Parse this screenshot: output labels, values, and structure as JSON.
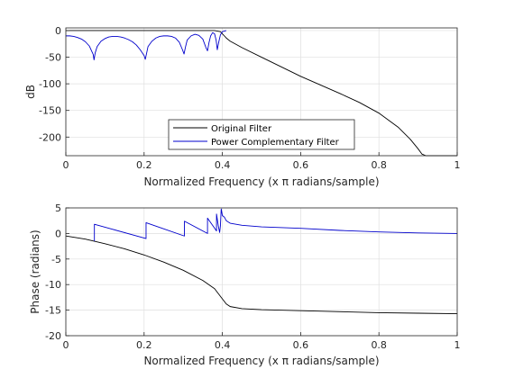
{
  "chart_data": [
    {
      "type": "line",
      "xlabel": "Normalized Frequency (x π radians/sample)",
      "ylabel": "dB",
      "xlim": [
        0,
        1
      ],
      "ylim": [
        -235,
        5
      ],
      "xticks": [
        0,
        0.2,
        0.4,
        0.6,
        0.8,
        1
      ],
      "xtick_labels": [
        "0",
        "0.2",
        "0.4",
        "0.6",
        "0.8",
        "1"
      ],
      "yticks": [
        0,
        -50,
        -100,
        -150,
        -200
      ],
      "ytick_labels": [
        "0",
        "-50",
        "-100",
        "-150",
        "-200"
      ],
      "grid": true,
      "legend": "bottom-center",
      "series": [
        {
          "name": "Original Filter",
          "color": "#000000",
          "x": [
            0,
            0.38,
            0.395,
            0.4,
            0.405,
            0.41,
            0.42,
            0.45,
            0.5,
            0.55,
            0.6,
            0.65,
            0.7,
            0.75,
            0.8,
            0.85,
            0.88,
            0.9,
            0.91,
            0.92,
            1.0
          ],
          "y": [
            0,
            0,
            -2,
            -6,
            -10,
            -14,
            -20,
            -32,
            -50,
            -68,
            -86,
            -102,
            -118,
            -135,
            -155,
            -182,
            -204,
            -222,
            -232,
            -235,
            -235
          ]
        },
        {
          "name": "Power Complementary Filter",
          "color": "#0000cc",
          "x": [
            0,
            0.01,
            0.02,
            0.03,
            0.04,
            0.05,
            0.06,
            0.07,
            0.072,
            0.075,
            0.08,
            0.09,
            0.1,
            0.11,
            0.12,
            0.13,
            0.14,
            0.15,
            0.16,
            0.17,
            0.18,
            0.19,
            0.2,
            0.203,
            0.206,
            0.21,
            0.22,
            0.23,
            0.24,
            0.25,
            0.26,
            0.27,
            0.28,
            0.29,
            0.298,
            0.302,
            0.306,
            0.31,
            0.32,
            0.33,
            0.34,
            0.35,
            0.358,
            0.362,
            0.366,
            0.37,
            0.375,
            0.38,
            0.384,
            0.387,
            0.39,
            0.395,
            0.4,
            0.405,
            0.41
          ],
          "y": [
            -10,
            -10,
            -11,
            -13,
            -16,
            -21,
            -29,
            -45,
            -55,
            -42,
            -30,
            -20,
            -15,
            -12,
            -11,
            -11,
            -12,
            -14,
            -17,
            -21,
            -27,
            -36,
            -47,
            -54,
            -44,
            -30,
            -20,
            -14,
            -11,
            -10,
            -10,
            -11,
            -14,
            -22,
            -36,
            -44,
            -30,
            -18,
            -10,
            -7,
            -9,
            -16,
            -32,
            -38,
            -22,
            -10,
            -4,
            -6,
            -18,
            -36,
            -24,
            -8,
            -2,
            -1,
            0
          ]
        }
      ]
    },
    {
      "type": "line",
      "xlabel": "Normalized Frequency (x π radians/sample)",
      "ylabel": "Phase (radians)",
      "xlim": [
        0,
        1
      ],
      "ylim": [
        -20,
        5
      ],
      "xticks": [
        0,
        0.2,
        0.4,
        0.6,
        0.8,
        1
      ],
      "xtick_labels": [
        "0",
        "0.2",
        "0.4",
        "0.6",
        "0.8",
        "1"
      ],
      "yticks": [
        5,
        0,
        -5,
        -10,
        -15,
        -20
      ],
      "ytick_labels": [
        "5",
        "0",
        "-5",
        "-10",
        "-15",
        "-20"
      ],
      "grid": true,
      "series": [
        {
          "name": "Original Filter",
          "color": "#000000",
          "x": [
            0,
            0.05,
            0.1,
            0.15,
            0.2,
            0.25,
            0.3,
            0.35,
            0.38,
            0.4,
            0.41,
            0.42,
            0.45,
            0.5,
            0.6,
            0.7,
            0.8,
            0.9,
            1.0
          ],
          "y": [
            -0.5,
            -1.1,
            -2.0,
            -3.0,
            -4.2,
            -5.6,
            -7.2,
            -9.2,
            -10.8,
            -12.8,
            -13.8,
            -14.3,
            -14.7,
            -14.9,
            -15.1,
            -15.3,
            -15.5,
            -15.6,
            -15.7
          ],
          "gap_indices": []
        },
        {
          "name": "Power Complementary Filter",
          "color": "#0000cc",
          "x": [
            0.073,
            0.073,
            0.205,
            0.205,
            0.303,
            0.303,
            0.362,
            0.362,
            0.385,
            0.385,
            0.39,
            0.393,
            0.395,
            0.397,
            0.4,
            0.405,
            0.41,
            0.42,
            0.45,
            0.5,
            0.6,
            0.7,
            0.8,
            0.9,
            1.0
          ],
          "y": [
            -1.5,
            1.8,
            -1.0,
            2.1,
            -0.5,
            2.4,
            0.0,
            3.0,
            0.5,
            3.8,
            1.3,
            0.2,
            1.5,
            4.8,
            3.5,
            3.2,
            2.5,
            2.0,
            1.6,
            1.3,
            1.0,
            0.6,
            0.3,
            0.1,
            0.0
          ]
        }
      ]
    }
  ]
}
